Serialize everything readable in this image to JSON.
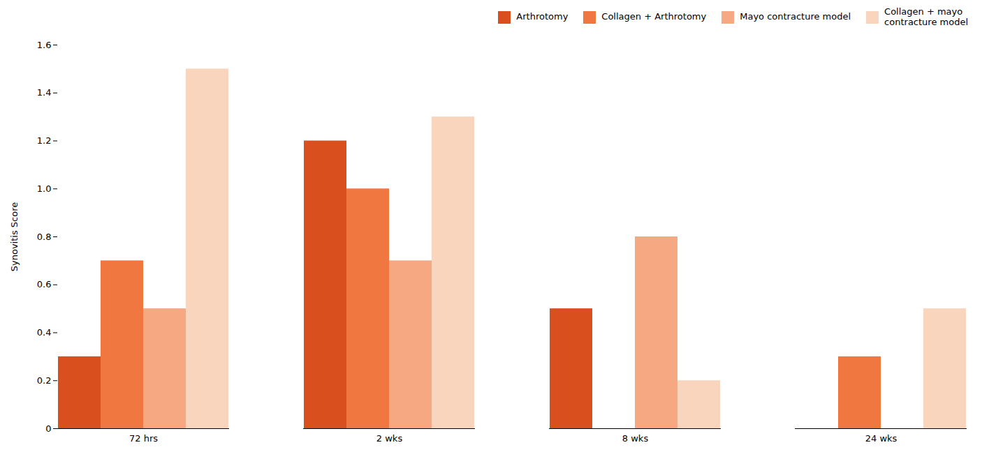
{
  "chart_data": {
    "type": "bar",
    "categories": [
      "72 hrs",
      "2 wks",
      "8 wks",
      "24 wks"
    ],
    "series": [
      {
        "name": "Arthrotomy",
        "color": "#D94F1E",
        "values": [
          0.3,
          1.2,
          0.5,
          0.0
        ]
      },
      {
        "name": "Collagen + Arthrotomy",
        "color": "#F07840",
        "values": [
          0.7,
          1.0,
          0.0,
          0.3
        ]
      },
      {
        "name": "Mayo contracture model",
        "color": "#F5A882",
        "values": [
          0.5,
          0.7,
          0.8,
          0.0
        ]
      },
      {
        "name": "Collagen + mayo\ncontracture model",
        "color": "#FAD5BE",
        "values": [
          1.5,
          1.3,
          0.2,
          0.5
        ]
      }
    ],
    "ylabel": "Synovitis Score",
    "ylim": [
      0,
      1.6
    ],
    "yticks": [
      0,
      0.2,
      0.4,
      0.6,
      0.8,
      {
        "value": 1.0,
        "label": "1.0"
      },
      1.2,
      1.4,
      1.6
    ],
    "grid": false,
    "legend": "upper right"
  }
}
